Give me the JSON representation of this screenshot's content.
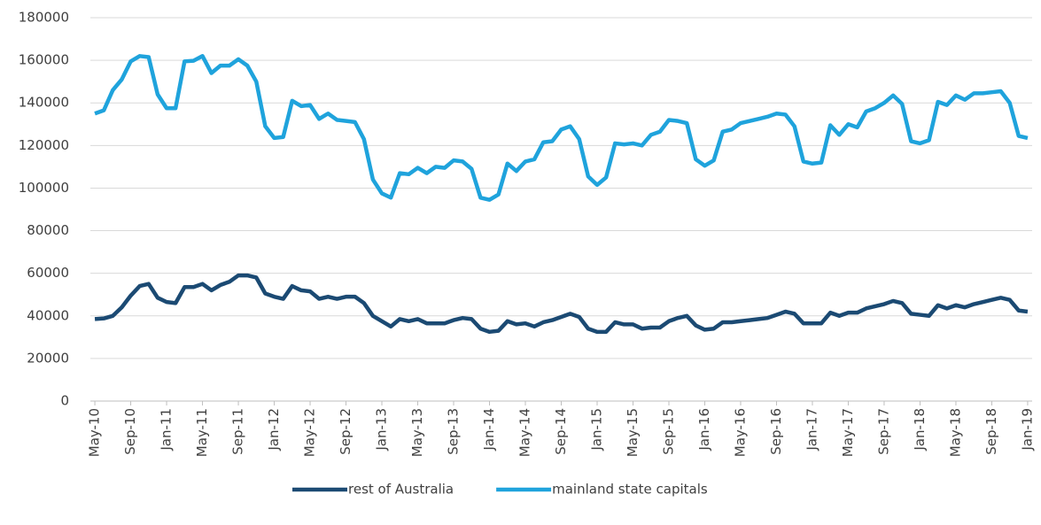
{
  "chart_data": {
    "type": "line",
    "categories": [
      "May-10",
      null,
      null,
      null,
      "Sep-10",
      null,
      null,
      null,
      "Jan-11",
      null,
      null,
      null,
      "May-11",
      null,
      null,
      null,
      "Sep-11",
      null,
      null,
      null,
      "Jan-12",
      null,
      null,
      null,
      "May-12",
      null,
      null,
      null,
      "Sep-12",
      null,
      null,
      null,
      "Jan-13",
      null,
      null,
      null,
      "May-13",
      null,
      null,
      null,
      "Sep-13",
      null,
      null,
      null,
      "Jan-14",
      null,
      null,
      null,
      "May-14",
      null,
      null,
      null,
      "Sep-14",
      null,
      null,
      null,
      "Jan-15",
      null,
      null,
      null,
      "May-15",
      null,
      null,
      null,
      "Sep-15",
      null,
      null,
      null,
      "Jan-16",
      null,
      null,
      null,
      "May-16",
      null,
      null,
      null,
      "Sep-16",
      null,
      null,
      null,
      "Jan-17",
      null,
      null,
      null,
      "May-17",
      null,
      null,
      null,
      "Sep-17",
      null,
      null,
      null,
      "Jan-18",
      null,
      null,
      null,
      "May-18",
      null,
      null,
      null,
      "Sep-18",
      null,
      null,
      null,
      "Jan-19"
    ],
    "series": [
      {
        "name": "rest of Australia",
        "color": "#1b4a73",
        "values": [
          38500,
          38800,
          40000,
          44000,
          49500,
          54000,
          55000,
          48500,
          46500,
          46000,
          53500,
          53500,
          55000,
          52000,
          54500,
          56000,
          59000,
          59000,
          58000,
          50500,
          49000,
          48000,
          54000,
          52000,
          51500,
          48000,
          49000,
          48000,
          49000,
          49000,
          46000,
          40000,
          37500,
          35000,
          38500,
          37500,
          38500,
          36500,
          36500,
          36500,
          38000,
          39000,
          38500,
          34000,
          32500,
          33000,
          37500,
          36000,
          36500,
          35000,
          37000,
          38000,
          39500,
          41000,
          39500,
          34000,
          32500,
          32500,
          37000,
          36000,
          36000,
          34000,
          34500,
          34500,
          37500,
          39000,
          40000,
          35500,
          33500,
          34000,
          37000,
          37000,
          37500,
          38000,
          38500,
          39000,
          40500,
          42000,
          41000,
          36500,
          36500,
          36500,
          41500,
          40000,
          41500,
          41500,
          43500,
          44500,
          45500,
          47000,
          46000,
          41000,
          40500,
          40000,
          45000,
          43500,
          45000,
          44000,
          45500,
          46500,
          47500,
          48500,
          47500,
          42500,
          42000
        ]
      },
      {
        "name": "mainland state capitals",
        "color": "#1fa3dc",
        "values": [
          135000,
          136500,
          146000,
          151000,
          159500,
          162000,
          161500,
          144000,
          137500,
          137500,
          159500,
          159800,
          162000,
          154000,
          157500,
          157500,
          160500,
          157500,
          150000,
          129000,
          123500,
          124000,
          141000,
          138500,
          139000,
          132500,
          135000,
          132000,
          131500,
          131000,
          123000,
          104000,
          97500,
          95500,
          107000,
          106500,
          109500,
          107000,
          110000,
          109500,
          113000,
          112500,
          109000,
          95500,
          94500,
          97000,
          111500,
          108000,
          112500,
          113500,
          121500,
          122000,
          127500,
          129000,
          123000,
          105500,
          101500,
          105000,
          121000,
          120500,
          121000,
          120000,
          125000,
          126500,
          132000,
          131500,
          130500,
          113500,
          110500,
          113000,
          126500,
          127500,
          130500,
          131500,
          132500,
          133500,
          135000,
          134500,
          129000,
          112500,
          111500,
          112000,
          129500,
          125000,
          130000,
          128500,
          136000,
          137500,
          140000,
          143500,
          139500,
          122000,
          121000,
          122500,
          140500,
          139000,
          143500,
          141500,
          144500,
          144500,
          145000,
          145500,
          140000,
          124500,
          123500
        ]
      }
    ],
    "ylim": [
      0,
      180000
    ],
    "yticks": [
      0,
      20000,
      40000,
      60000,
      80000,
      100000,
      120000,
      140000,
      160000,
      180000
    ],
    "grid": true,
    "legend": "bottom"
  }
}
